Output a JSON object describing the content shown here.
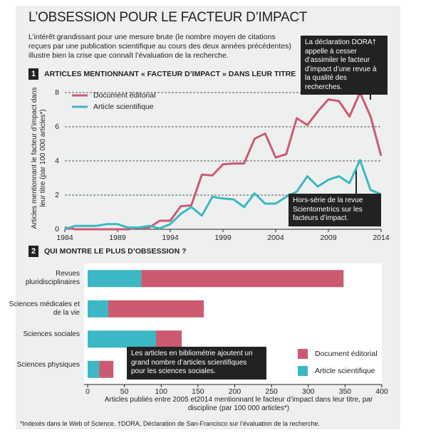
{
  "header": {
    "title": "L’OBSESSION POUR LE FACTEUR D’IMPACT",
    "intro": "L’intérêt grandissant pour une mesure brute (le nombre moyen de citations reçues par une publication scientifique au cours des deux années précédentes) illustre bien la crise que connaît l’évaluation de la recherche."
  },
  "chart_data": [
    {
      "type": "line",
      "number": "1",
      "title": "ARTICLES MENTIONNANT « FACTEUR D’IMPACT » DANS LEUR TITRE",
      "y_label": "Articles mentionnant  le facteur d’impact dans leur titre (par 100 000 articles*)",
      "x": [
        1984,
        1985,
        1986,
        1987,
        1988,
        1989,
        1990,
        1991,
        1992,
        1993,
        1994,
        1995,
        1996,
        1997,
        1998,
        1999,
        2000,
        2001,
        2002,
        2003,
        2004,
        2005,
        2006,
        2007,
        2008,
        2009,
        2010,
        2011,
        2012,
        2013,
        2014
      ],
      "series": [
        {
          "name": "Document éditorial",
          "color": "#cc5a70",
          "values": [
            0.1,
            0,
            0,
            0,
            0,
            0,
            0,
            0.1,
            0.1,
            0.5,
            0.5,
            1.35,
            1.4,
            3.2,
            3.15,
            3.8,
            3.85,
            3.85,
            5.3,
            5.6,
            4.2,
            4.4,
            6.5,
            6.1,
            6.9,
            7.6,
            7.5,
            6.6,
            8.0,
            6.6,
            4.3
          ]
        },
        {
          "name": "Article scientifique",
          "color": "#3bb8c3",
          "values": [
            0,
            0.2,
            0.2,
            0.2,
            0.3,
            0.3,
            0.1,
            0.1,
            0.2,
            0.05,
            0.3,
            0.9,
            1.3,
            0.8,
            1.9,
            1.8,
            1.75,
            1.3,
            2.1,
            1.5,
            1.5,
            1.9,
            2.2,
            3.1,
            2.5,
            2.9,
            3.1,
            2.7,
            4.05,
            2.3,
            2.05
          ]
        }
      ],
      "xlim": [
        1984,
        2014
      ],
      "xticks": [
        1984,
        1989,
        1994,
        1999,
        2004,
        2009,
        2014
      ],
      "ylim": [
        0,
        8
      ],
      "yticks": [
        0,
        2,
        4,
        6,
        8
      ],
      "grid": true,
      "legend": "upper left"
    },
    {
      "type": "hbar_stacked",
      "number": "2",
      "title": "QUI MONTRE LE PLUS D’OBSESSION ?",
      "x_label": "Articles publiés entre 2005 et2014 mentionnant le facteur d’impact dans leur titre, par discipline (par 100 000 articles*)",
      "categories": [
        "Revues pluridisciplinaires",
        "Sciences médicales et de la vie",
        "Sciences sociales",
        "Sciences physiques"
      ],
      "series": [
        {
          "name": "Article scientifique",
          "color": "#3bb8c3",
          "values": [
            73,
            28,
            93,
            16
          ]
        },
        {
          "name": "Document éditorial",
          "color": "#cc5a70",
          "values": [
            275,
            130,
            35,
            19
          ]
        }
      ],
      "xlim": [
        0,
        400
      ],
      "xticks": [
        0,
        50,
        100,
        150,
        200,
        250,
        300,
        350,
        400
      ],
      "legend": "lower right"
    }
  ],
  "annotations": [
    "La déclaration  DORA† appelle à cesser d’assimiler le facteur d’impact d’une revue à la qualité des recherches.",
    "Hors-série de la revue Scientometrics sur les facteurs d’impact.",
    "Les articles en bibliométrie ajoutent un grand nombre d’articles scientifiques pour les sciences sociales."
  ],
  "footnote": "*Indexés dans le Web of Science. †DORA, Déclaration de San-Francisco sur l’évaluation de la recherche."
}
